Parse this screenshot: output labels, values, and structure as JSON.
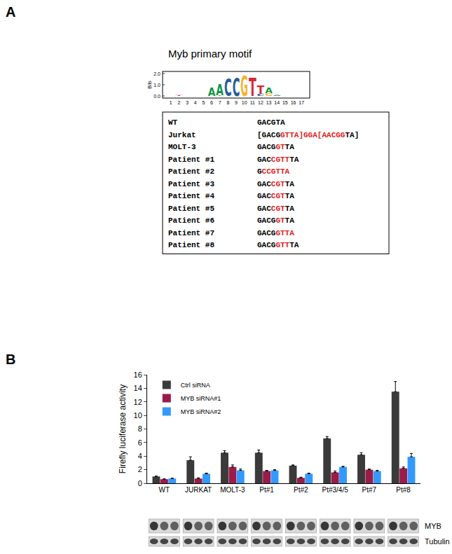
{
  "panel_a": {
    "label": "A",
    "title": "Myb primary motif",
    "logo": {
      "ylabel": "Bits",
      "ylim": [
        0,
        2
      ],
      "yticks": [
        {
          "value": 0,
          "label": "0.0"
        },
        {
          "value": 1,
          "label": "1.0"
        },
        {
          "value": 2,
          "label": "2.0"
        }
      ],
      "positions": [
        1,
        2,
        3,
        4,
        5,
        6,
        7,
        8,
        9,
        10,
        11,
        12,
        13,
        14,
        15,
        16,
        17
      ],
      "columns": [
        [],
        [
          {
            "letter": "T",
            "bits": 0.08
          }
        ],
        [],
        [],
        [],
        [
          {
            "letter": "A",
            "bits": 0.7
          }
        ],
        [
          {
            "letter": "T",
            "bits": 0.05
          },
          {
            "letter": "A",
            "bits": 0.95
          }
        ],
        [
          {
            "letter": "C",
            "bits": 1.5
          }
        ],
        [
          {
            "letter": "C",
            "bits": 1.6
          }
        ],
        [
          {
            "letter": "G",
            "bits": 1.8
          }
        ],
        [
          {
            "letter": "T",
            "bits": 1.6
          }
        ],
        [
          {
            "letter": "C",
            "bits": 0.2
          },
          {
            "letter": "T",
            "bits": 0.75
          }
        ],
        [
          {
            "letter": "G",
            "bits": 0.25
          },
          {
            "letter": "A",
            "bits": 0.45
          }
        ],
        [
          {
            "letter": "A",
            "bits": 0.1
          }
        ],
        [],
        [],
        []
      ],
      "letter_colors": {
        "A": "#109648",
        "C": "#255c99",
        "G": "#f7b32b",
        "T": "#d62839"
      }
    },
    "alignment": [
      {
        "name": "WT",
        "segments": [
          {
            "text": "GACGTA",
            "color": "black"
          }
        ]
      },
      {
        "name": "Jurkat",
        "segments": [
          {
            "text": "[GACG",
            "color": "black"
          },
          {
            "text": "GTTA]GGA[AACGG",
            "color": "red"
          },
          {
            "text": "TA]",
            "color": "black"
          }
        ]
      },
      {
        "name": "MOLT-3",
        "segments": [
          {
            "text": "GACG",
            "color": "black"
          },
          {
            "text": "GT",
            "color": "red"
          },
          {
            "text": "TA",
            "color": "black"
          }
        ]
      },
      {
        "name": "Patient #1",
        "segments": [
          {
            "text": "GAC",
            "color": "black"
          },
          {
            "text": "CGTT",
            "color": "red"
          },
          {
            "text": "TA",
            "color": "black"
          }
        ]
      },
      {
        "name": "Patient #2",
        "segments": [
          {
            "text": "G",
            "color": "black"
          },
          {
            "text": "CCGTTA",
            "color": "red"
          }
        ]
      },
      {
        "name": "Patient #3",
        "segments": [
          {
            "text": "GAC",
            "color": "black"
          },
          {
            "text": "CGT",
            "color": "red"
          },
          {
            "text": "TA",
            "color": "black"
          }
        ]
      },
      {
        "name": "Patient #4",
        "segments": [
          {
            "text": "GAC",
            "color": "black"
          },
          {
            "text": "CGT",
            "color": "red"
          },
          {
            "text": "TA",
            "color": "black"
          }
        ]
      },
      {
        "name": "Patient #5",
        "segments": [
          {
            "text": "GAC",
            "color": "black"
          },
          {
            "text": "CGT",
            "color": "red"
          },
          {
            "text": "TA",
            "color": "black"
          }
        ]
      },
      {
        "name": "Patient #6",
        "segments": [
          {
            "text": "GACG",
            "color": "black"
          },
          {
            "text": "GT",
            "color": "red"
          },
          {
            "text": "TA",
            "color": "black"
          }
        ]
      },
      {
        "name": "Patient #7",
        "segments": [
          {
            "text": "GACG",
            "color": "black"
          },
          {
            "text": "GTTA",
            "color": "red"
          }
        ]
      },
      {
        "name": "Patient #8",
        "segments": [
          {
            "text": "GACG",
            "color": "black"
          },
          {
            "text": "GTT",
            "color": "red"
          },
          {
            "text": "TA",
            "color": "black"
          }
        ]
      }
    ]
  },
  "panel_b": {
    "label": "B",
    "blot_rows": [
      "MYB",
      "Tubulin"
    ]
  },
  "chart_data": {
    "type": "bar",
    "ylabel": "Firefly luciferase activity",
    "categories": [
      "WT",
      "JURKAT",
      "MOLT-3",
      "Pt#1",
      "Pt#2",
      "Pt#3/4/5",
      "Pt#7",
      "Pt#8"
    ],
    "series": [
      {
        "name": "Ctrl siRNA",
        "color": "#3a3a3a",
        "values": [
          1.0,
          3.4,
          4.5,
          4.5,
          2.6,
          6.6,
          4.2,
          13.5
        ],
        "errors": [
          0.05,
          0.5,
          0.3,
          0.4,
          0.1,
          0.3,
          0.3,
          1.5
        ]
      },
      {
        "name": "MYB siRNA#1",
        "color": "#9b1b4a",
        "values": [
          0.6,
          0.7,
          2.4,
          1.8,
          0.8,
          1.6,
          2.0,
          2.2
        ],
        "errors": [
          0.05,
          0.1,
          0.3,
          0.1,
          0.1,
          0.2,
          0.1,
          0.2
        ]
      },
      {
        "name": "MYB siRNA#2",
        "color": "#3399ff",
        "values": [
          0.7,
          1.4,
          1.9,
          1.9,
          1.4,
          2.4,
          1.8,
          3.9
        ],
        "errors": [
          0.05,
          0.1,
          0.2,
          0.1,
          0.1,
          0.1,
          0.1,
          0.5
        ]
      }
    ],
    "ylim": [
      0,
      16
    ],
    "yticks": [
      0,
      2,
      4,
      6,
      8,
      10,
      12,
      14,
      16
    ],
    "legend": "top-left",
    "grid": false
  }
}
